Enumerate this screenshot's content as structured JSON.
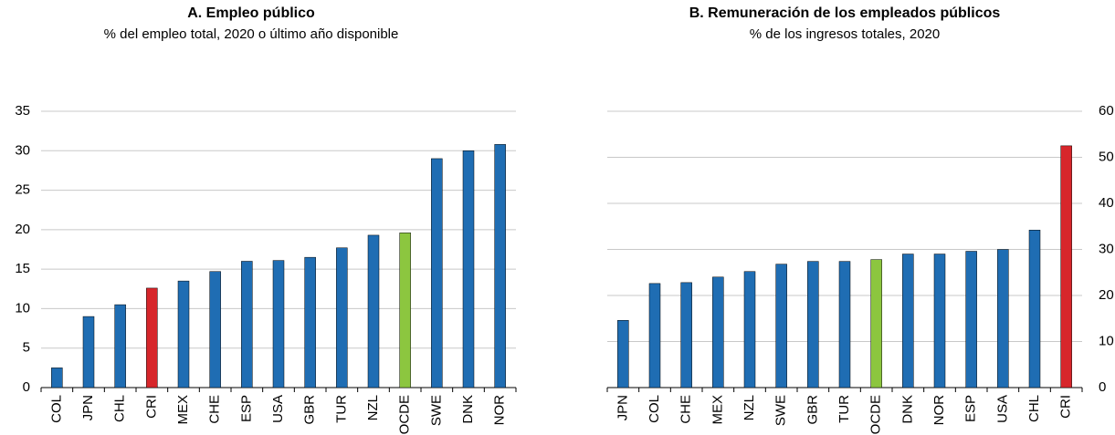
{
  "chart_data": [
    {
      "type": "bar",
      "title": "A. Empleo público",
      "subtitle": "% del empleo total, 2020 o último año disponible",
      "categories": [
        "COL",
        "JPN",
        "CHL",
        "CRI",
        "MEX",
        "CHE",
        "ESP",
        "USA",
        "GBR",
        "TUR",
        "NZL",
        "OCDE",
        "SWE",
        "DNK",
        "NOR"
      ],
      "values": [
        2.5,
        9,
        10.5,
        12.6,
        13.5,
        14.7,
        16,
        16.1,
        16.5,
        17.7,
        19.3,
        19.6,
        29,
        30,
        30.8
      ],
      "colors": [
        "#1f6db3",
        "#1f6db3",
        "#1f6db3",
        "#d7262b",
        "#1f6db3",
        "#1f6db3",
        "#1f6db3",
        "#1f6db3",
        "#1f6db3",
        "#1f6db3",
        "#1f6db3",
        "#8cc63f",
        "#1f6db3",
        "#1f6db3",
        "#1f6db3"
      ],
      "ylim": [
        0,
        35
      ],
      "yticks": [
        0,
        5,
        10,
        15,
        20,
        25,
        30,
        35
      ],
      "grid": true,
      "yaxis_position": "left"
    },
    {
      "type": "bar",
      "title": "B. Remuneración de los empleados públicos",
      "subtitle": "% de los ingresos totales, 2020",
      "categories": [
        "JPN",
        "COL",
        "CHE",
        "MEX",
        "NZL",
        "SWE",
        "GBR",
        "TUR",
        "OCDE",
        "DNK",
        "NOR",
        "ESP",
        "USA",
        "CHL",
        "CRI"
      ],
      "values": [
        14.6,
        22.6,
        22.8,
        24,
        25.2,
        26.8,
        27.4,
        27.4,
        27.8,
        29,
        29,
        29.6,
        30,
        34.2,
        52.5
      ],
      "colors": [
        "#1f6db3",
        "#1f6db3",
        "#1f6db3",
        "#1f6db3",
        "#1f6db3",
        "#1f6db3",
        "#1f6db3",
        "#1f6db3",
        "#8cc63f",
        "#1f6db3",
        "#1f6db3",
        "#1f6db3",
        "#1f6db3",
        "#1f6db3",
        "#d7262b"
      ],
      "ylim": [
        0,
        60
      ],
      "yticks": [
        0,
        10,
        20,
        30,
        40,
        50,
        60
      ],
      "grid": true,
      "yaxis_position": "right"
    }
  ]
}
